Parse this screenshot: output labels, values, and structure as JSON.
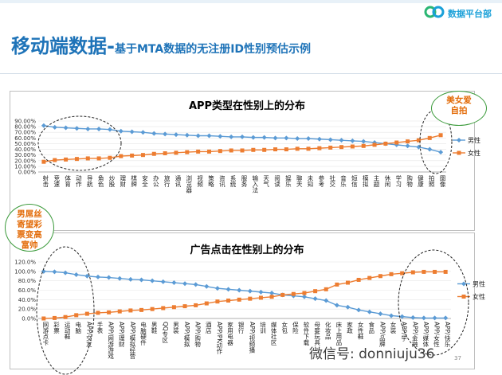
{
  "header": {
    "title_main": "移动端数据-",
    "title_sub": "基于MTA数据的无注册ID性别预估示例",
    "logo_text": "数据平台部"
  },
  "callouts": {
    "top_right": "美女爱自拍",
    "left": "男屌丝寄望彩票变高富帅"
  },
  "footer": {
    "watermark": "微信号: donniuju36",
    "page_number": "37"
  },
  "colors": {
    "male": "#5b9bd5",
    "female": "#ed7d31",
    "accent": "#1e73b8"
  },
  "chart_data": [
    {
      "type": "line",
      "title": "APP类型在性别上的分布",
      "categories": [
        "射击",
        "竞速",
        "体育",
        "动作",
        "导航",
        "角色",
        "炒股",
        "理财",
        "棋牌",
        "安全",
        "办公",
        "旅行",
        "通讯",
        "浏览器",
        "视频",
        "策略",
        "资讯",
        "系统",
        "服务",
        "输入法",
        "天气",
        "阅读",
        "娱乐",
        "聊天",
        "未知",
        "参考",
        "社交",
        "音乐",
        "短信",
        "模拟",
        "主题",
        "休闲",
        "学习",
        "购物",
        "健康",
        "拍照",
        "图像"
      ],
      "ylim": [
        0,
        90
      ],
      "yticks": [
        "0.00%",
        "10.00%",
        "20.00%",
        "30.00%",
        "40.00%",
        "50.00%",
        "60.00%",
        "70.00%",
        "80.00%",
        "90.00%"
      ],
      "series": [
        {
          "name": "男性",
          "values": [
            82,
            79,
            78,
            77,
            76,
            76,
            75,
            72,
            71,
            70,
            68,
            67,
            66,
            65,
            64,
            64,
            63,
            62,
            62,
            61,
            61,
            60,
            60,
            59,
            59,
            58,
            57,
            56,
            55,
            54,
            52,
            50,
            48,
            46,
            44,
            40,
            35
          ]
        },
        {
          "name": "女性",
          "values": [
            18,
            21,
            22,
            23,
            24,
            24,
            25,
            28,
            29,
            30,
            32,
            33,
            34,
            35,
            36,
            36,
            37,
            38,
            38,
            39,
            39,
            40,
            40,
            41,
            41,
            42,
            43,
            44,
            45,
            46,
            48,
            50,
            52,
            54,
            56,
            60,
            65
          ]
        }
      ]
    },
    {
      "type": "line",
      "title": "广告点击在性别上的分布",
      "categories": [
        "网游点卡",
        "彩票",
        "运动鞋",
        "电脑",
        "APP/交友",
        "手表",
        "APP/网游游戏",
        "APP/理财",
        "APP/模拟经营",
        "电脑硬件",
        "男鞋",
        "QQ专区",
        "男装",
        "APP/模拟",
        "APP/购物",
        "酒店",
        "APP/PK动作",
        "家用电器",
        "银行",
        "APP/视频播",
        "培训",
        "媒体社区",
        "女包",
        "保险",
        "软件下载",
        "母婴玩具",
        "化妆品",
        "床上用品",
        "家政",
        "女性鞋",
        "食品",
        "APP/品牌",
        "女装",
        "APP/学",
        "APP/金融",
        "APP/媒体",
        "APP/女性",
        "APP/快乐"
      ],
      "ylim": [
        0,
        120
      ],
      "yticks": [
        "0.0%",
        "20.0%",
        "40.0%",
        "60.0%",
        "80.0%",
        "100.0%",
        "120.0%"
      ],
      "series": [
        {
          "name": "男性",
          "values": [
            100,
            99,
            97,
            93,
            90,
            88,
            87,
            85,
            83,
            82,
            80,
            78,
            76,
            74,
            72,
            68,
            64,
            62,
            60,
            58,
            56,
            54,
            50,
            48,
            46,
            42,
            38,
            28,
            24,
            18,
            14,
            10,
            6,
            4,
            2,
            1,
            1,
            1
          ]
        },
        {
          "name": "女性",
          "values": [
            0,
            1,
            3,
            7,
            10,
            12,
            13,
            15,
            17,
            18,
            20,
            22,
            24,
            26,
            28,
            32,
            36,
            38,
            40,
            42,
            44,
            46,
            50,
            52,
            54,
            58,
            62,
            72,
            76,
            82,
            86,
            90,
            94,
            96,
            98,
            99,
            99,
            99
          ]
        }
      ]
    }
  ]
}
